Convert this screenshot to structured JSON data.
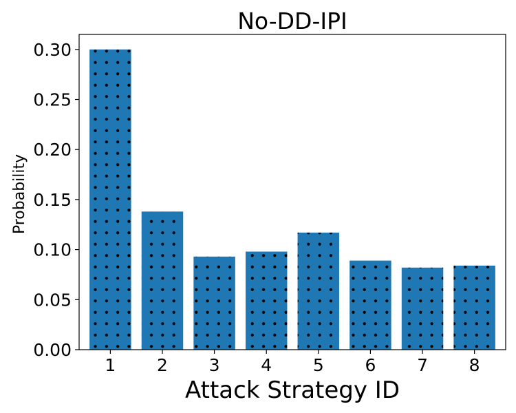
{
  "chart_data": {
    "type": "bar",
    "title": "No-DD-IPI",
    "xlabel": "Attack Strategy ID",
    "ylabel": "Probability",
    "categories": [
      "1",
      "2",
      "3",
      "4",
      "5",
      "6",
      "7",
      "8"
    ],
    "values": [
      0.3,
      0.138,
      0.093,
      0.098,
      0.117,
      0.089,
      0.082,
      0.084
    ],
    "ylim": [
      0,
      0.315
    ],
    "yticks": [
      "0.00",
      "0.05",
      "0.10",
      "0.15",
      "0.20",
      "0.25",
      "0.30"
    ],
    "ytick_values": [
      0,
      0.05,
      0.1,
      0.15,
      0.2,
      0.25,
      0.3
    ],
    "bar_color": "#1f77b4",
    "hatch": "dots",
    "grid": false,
    "legend": "none"
  }
}
